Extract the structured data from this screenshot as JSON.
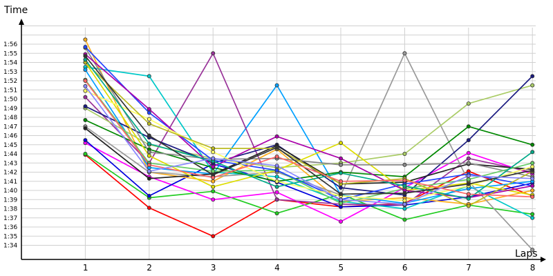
{
  "chart_data": {
    "type": "line",
    "xlabel": "Laps",
    "ylabel": "Time",
    "x": [
      1,
      2,
      3,
      4,
      5,
      6,
      7,
      8
    ],
    "x_tick_labels": [
      "1",
      "2",
      "3",
      "4",
      "5",
      "6",
      "7",
      "8"
    ],
    "y_tick_labels": [
      "1:34",
      "1:35",
      "1:36",
      "1:37",
      "1:38",
      "1:39",
      "1:40",
      "1:41",
      "1:42",
      "1:43",
      "1:44",
      "1:45",
      "1:46",
      "1:47",
      "1:48",
      "1:49",
      "1:50",
      "1:51",
      "1:52",
      "1:53",
      "1:54",
      "1:55",
      "1:56"
    ],
    "y_unit": "seconds",
    "ylim": [
      93,
      118
    ],
    "xlim": [
      0,
      8
    ],
    "grid": true,
    "legend": "none",
    "series": [
      {
        "color": "#ff0000",
        "values": [
          103.9,
          98.1,
          95.0,
          99.0,
          98.2,
          98.6,
          102.1,
          99.4
        ]
      },
      {
        "color": "#22cc22",
        "values": [
          104.0,
          99.2,
          99.9,
          97.5,
          99.6,
          96.8,
          98.4,
          97.4
        ]
      },
      {
        "color": "#ff00ff",
        "values": [
          105.2,
          101.5,
          99.0,
          99.8,
          96.6,
          100.3,
          104.1,
          101.8
        ]
      },
      {
        "color": "#0000dd",
        "values": [
          105.5,
          99.4,
          102.9,
          100.9,
          98.2,
          98.4,
          99.3,
          100.8
        ]
      },
      {
        "color": "#ffb020",
        "values": [
          116.5,
          102.0,
          101.0,
          104.5,
          98.8,
          99.2,
          98.5,
          100.0
        ]
      },
      {
        "color": "#00c8c8",
        "values": [
          113.5,
          112.5,
          102.0,
          101.5,
          98.8,
          98.0,
          100.5,
          97.0
        ]
      },
      {
        "color": "#00a0ff",
        "values": [
          113.2,
          102.5,
          101.8,
          111.5,
          99.5,
          98.6,
          100.2,
          101.0
        ]
      },
      {
        "color": "#993399",
        "values": [
          110.2,
          103.0,
          115.0,
          99.0,
          98.5,
          98.4,
          103.5,
          102.0
        ]
      },
      {
        "color": "#999999",
        "values": [
          107.0,
          102.0,
          101.5,
          102.0,
          99.5,
          115.0,
          101.0,
          93.5
        ]
      },
      {
        "color": "#aacc66",
        "values": [
          109.0,
          105.0,
          103.5,
          102.5,
          103.0,
          104.0,
          109.5,
          111.5
        ]
      },
      {
        "color": "#1a1a80",
        "values": [
          109.2,
          105.8,
          103.0,
          105.0,
          100.3,
          99.5,
          105.5,
          112.5
        ]
      },
      {
        "color": "#008800",
        "values": [
          107.7,
          104.5,
          102.5,
          101.0,
          102.0,
          101.5,
          107.0,
          105.0
        ]
      },
      {
        "color": "#222222",
        "values": [
          106.8,
          101.3,
          101.8,
          104.9,
          100.7,
          100.9,
          102.9,
          102.3
        ]
      },
      {
        "color": "#dddd00",
        "values": [
          114.0,
          103.8,
          100.4,
          102.2,
          105.2,
          100.0,
          100.8,
          99.5
        ]
      },
      {
        "color": "#888888",
        "values": [
          115.6,
          104.2,
          103.4,
          103.5,
          102.8,
          102.8,
          103.0,
          101.5
        ]
      },
      {
        "color": "#66cc66",
        "values": [
          112.1,
          103.0,
          102.1,
          102.2,
          98.6,
          100.2,
          101.2,
          103.0
        ]
      },
      {
        "color": "#2244ff",
        "values": [
          115.7,
          108.5,
          103.3,
          102.2,
          99.0,
          100.7,
          101.8,
          100.5
        ]
      },
      {
        "color": "#aa00aa",
        "values": [
          114.9,
          108.9,
          102.6,
          105.9,
          103.5,
          100.0,
          99.2,
          100.5
        ]
      },
      {
        "color": "#ffff66",
        "values": [
          110.9,
          107.8,
          104.2,
          101.0,
          99.4,
          98.9,
          100.5,
          102.6
        ]
      },
      {
        "color": "#bbbb22",
        "values": [
          114.0,
          107.3,
          104.6,
          104.6,
          100.7,
          101.3,
          98.3,
          102.1
        ]
      },
      {
        "color": "#00aa88",
        "values": [
          114.3,
          105.1,
          103.2,
          100.4,
          101.9,
          100.5,
          99.1,
          104.2
        ]
      },
      {
        "color": "#333333",
        "values": [
          114.7,
          106.0,
          101.7,
          104.7,
          99.6,
          99.7,
          100.7,
          102.2
        ]
      },
      {
        "color": "#ff6666",
        "values": [
          112.0,
          102.8,
          101.4,
          103.7,
          101.0,
          101.1,
          99.6,
          99.3
        ]
      },
      {
        "color": "#8888ff",
        "values": [
          111.4,
          102.1,
          103.5,
          102.7,
          99.0,
          98.5,
          101.6,
          101.3
        ]
      }
    ]
  }
}
